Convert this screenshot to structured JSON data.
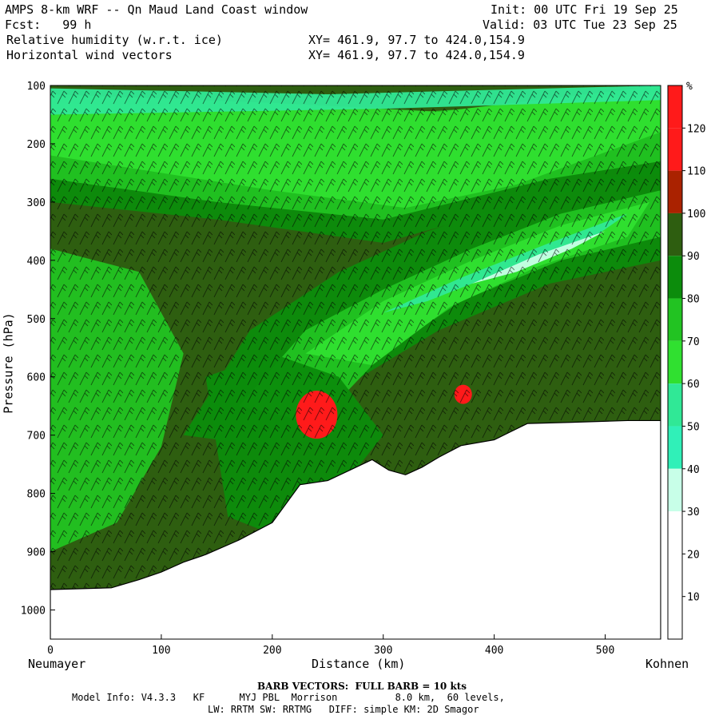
{
  "header": {
    "line1_left": "AMPS 8-km WRF -- Qn Maud Land Coast window",
    "line1_right": "Init: 00 UTC Fri 19 Sep 25",
    "line2_left": "Fcst:   99 h",
    "line2_right": "Valid: 03 UTC Tue 23 Sep 25",
    "line3_left": "Relative humidity (w.r.t. ice)",
    "line3_right": "XY= 461.9, 97.7 to 424.0,154.9",
    "line4_left": "Horizontal wind vectors",
    "line4_right": "XY= 461.9, 97.7 to 424.0,154.9"
  },
  "endpoints": {
    "left": "Neumayer",
    "right": "Kohnen"
  },
  "colorbar": {
    "unit": "%",
    "levels": [
      "10",
      "20",
      "30",
      "40",
      "50",
      "60",
      "70",
      "80",
      "90",
      "100",
      "110",
      "120"
    ],
    "colors": [
      "#ffffff",
      "#ffffff",
      "#ffffff",
      "#c8ffe8",
      "#30f0b8",
      "#30e896",
      "#30e030",
      "#22c322",
      "#0c8c0c",
      "#2e5e10",
      "#aa2200",
      "#ff1a1a"
    ]
  },
  "footer": {
    "barb": "BARB VECTORS:  FULL BARB = 10 kts",
    "model1": "Model Info: V4.3.3   KF      MYJ PBL  Morrison          8.0 km,  60 levels,",
    "model2": "LW: RRTM SW: RRTMG   DIFF: simple KM: 2D Smagor"
  },
  "chart_data": {
    "type": "heatmap",
    "xlabel": "Distance (km)",
    "ylabel": "Pressure (hPa)",
    "xlim": [
      0,
      550
    ],
    "ylim": [
      1050,
      100
    ],
    "x_ticks": [
      0,
      100,
      200,
      300,
      400,
      500
    ],
    "y_ticks": [
      100,
      200,
      300,
      400,
      500,
      600,
      700,
      800,
      900,
      1000
    ],
    "terrain_surface": {
      "x": [
        0,
        55,
        80,
        100,
        120,
        140,
        170,
        200,
        225,
        250,
        270,
        290,
        305,
        320,
        335,
        350,
        370,
        400,
        430,
        470,
        520,
        550
      ],
      "pressure": [
        965,
        962,
        948,
        935,
        918,
        905,
        880,
        850,
        785,
        778,
        760,
        742,
        760,
        768,
        755,
        738,
        718,
        708,
        680,
        678,
        675,
        675
      ]
    },
    "high_rh_cores": [
      {
        "x": 240,
        "pressure": 665,
        "rh_percent": 120
      },
      {
        "x": 372,
        "pressure": 630,
        "rh_percent": 115
      }
    ],
    "wind_field": "horizontal wind barbs throughout the cross-section",
    "grid": false
  }
}
